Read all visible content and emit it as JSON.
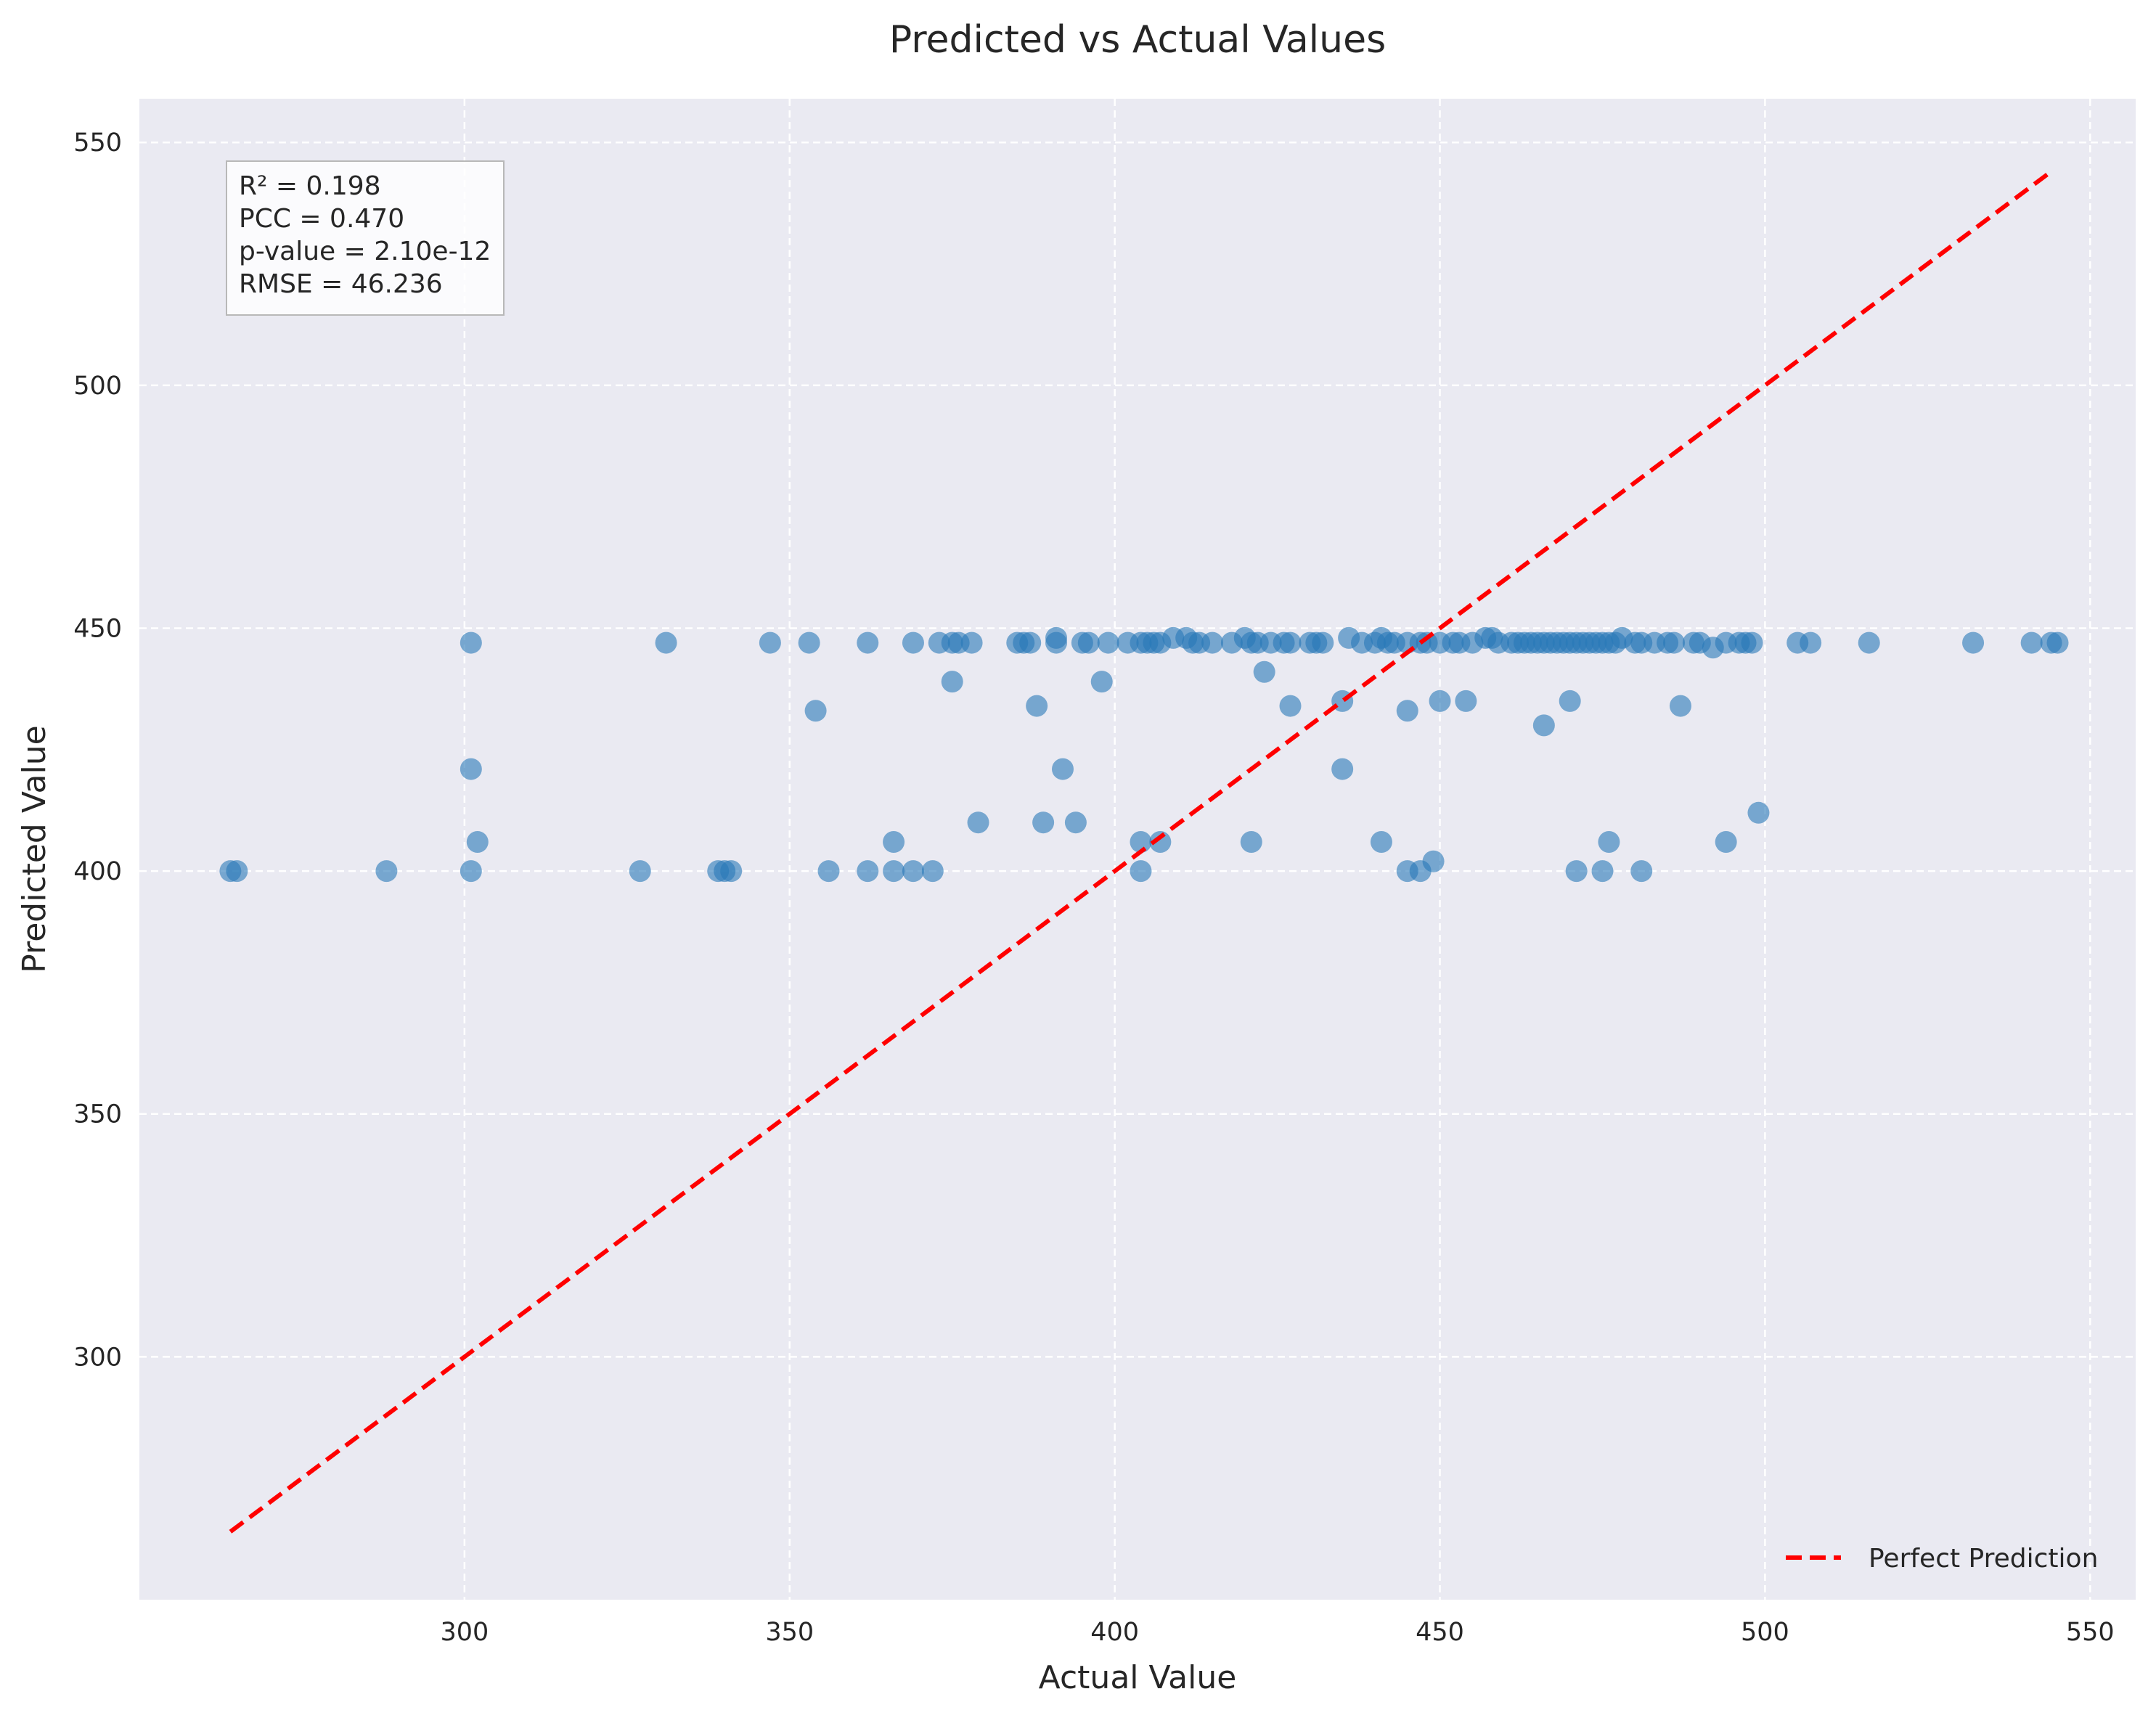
{
  "chart_data": {
    "type": "scatter",
    "title": "Predicted vs Actual Values",
    "xlabel": "Actual Value",
    "ylabel": "Predicted Value",
    "xlim": [
      250,
      557
    ],
    "ylim": [
      250,
      559
    ],
    "xticks": [
      300,
      350,
      400,
      450,
      500,
      550
    ],
    "yticks": [
      300,
      350,
      400,
      450,
      500,
      550
    ],
    "grid": true,
    "legend_position": "bottom-right",
    "colors": {
      "points": "#2878b8",
      "reference_line": "#ff0000",
      "plot_background": "#eaeaf2",
      "grid": "#ffffff"
    },
    "stats": [
      "R² = 0.198",
      "PCC = 0.470",
      "p-value = 2.10e-12",
      "RMSE = 46.236"
    ],
    "reference_line": {
      "name": "Perfect Prediction",
      "x": [
        264,
        544
      ],
      "y": [
        264,
        544
      ]
    },
    "series": [
      {
        "x": [
          264,
          265,
          288,
          301,
          327,
          339,
          340,
          341,
          356,
          362,
          366,
          369,
          372,
          404,
          445,
          447,
          471,
          475,
          481,
          302,
          366,
          404,
          407,
          421,
          441,
          476,
          494,
          449,
          499,
          389,
          379,
          394,
          301,
          392,
          435,
          354,
          388,
          427,
          445,
          435,
          450,
          454,
          466,
          470,
          487,
          375,
          398,
          423,
          301,
          331,
          347,
          353,
          362,
          369,
          373,
          375,
          376,
          378,
          385,
          386,
          387,
          391,
          391,
          395,
          396,
          399,
          402,
          404,
          405,
          406,
          407,
          409,
          411,
          412,
          413,
          415,
          418,
          420,
          421,
          422,
          424,
          426,
          427,
          430,
          431,
          432,
          436,
          438,
          440,
          441,
          442,
          443,
          445,
          447,
          448,
          450,
          452,
          453,
          455,
          457,
          458,
          459,
          461,
          462,
          463,
          464,
          465,
          466,
          467,
          468,
          469,
          470,
          471,
          472,
          473,
          474,
          475,
          476,
          477,
          478,
          480,
          481,
          483,
          485,
          486,
          489,
          490,
          492,
          494,
          496,
          497,
          498,
          505,
          507,
          516,
          532,
          541,
          544,
          545
        ],
        "y": [
          400,
          400,
          400,
          400,
          400,
          400,
          400,
          400,
          400,
          400,
          400,
          400,
          400,
          400,
          400,
          400,
          400,
          400,
          400,
          406,
          406,
          406,
          406,
          406,
          406,
          406,
          406,
          402,
          412,
          410,
          410,
          410,
          421,
          421,
          421,
          433,
          434,
          434,
          433,
          435,
          435,
          435,
          430,
          435,
          434,
          439,
          439,
          441,
          447,
          447,
          447,
          447,
          447,
          447,
          447,
          447,
          447,
          447,
          447,
          447,
          447,
          448,
          447,
          447,
          447,
          447,
          447,
          447,
          447,
          447,
          447,
          448,
          448,
          447,
          447,
          447,
          447,
          448,
          447,
          447,
          447,
          447,
          447,
          447,
          447,
          447,
          448,
          447,
          447,
          448,
          447,
          447,
          447,
          447,
          447,
          447,
          447,
          447,
          447,
          448,
          448,
          447,
          447,
          447,
          447,
          447,
          447,
          447,
          447,
          447,
          447,
          447,
          447,
          447,
          447,
          447,
          447,
          447,
          447,
          448,
          447,
          447,
          447,
          447,
          447,
          447,
          447,
          446,
          447,
          447,
          447,
          447,
          447,
          447,
          447,
          447,
          447,
          447,
          447
        ]
      }
    ]
  }
}
